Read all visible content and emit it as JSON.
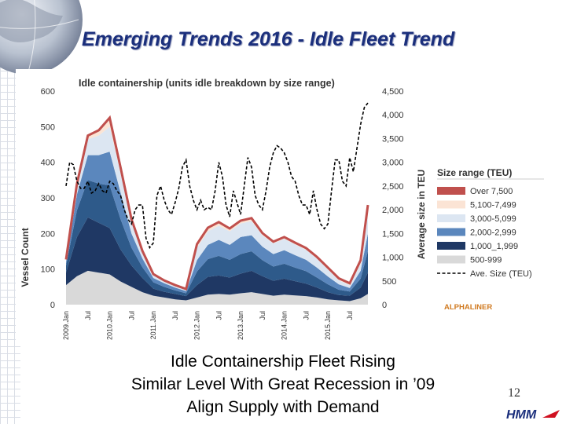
{
  "slide": {
    "title": "Emerging Trends 2016 - Idle Fleet Trend",
    "caption_lines": [
      "Idle Containership Fleet Rising",
      "Similar Level With Great Recession in ’09",
      "Align Supply with Demand"
    ],
    "page_number": "12",
    "logo_text": "HMM",
    "colors": {
      "title": "#1b2f7c"
    }
  },
  "chart_data": {
    "type": "area",
    "title": "Idle containership (units idle breakdown by size range)",
    "ylabel": "Vessel Count",
    "y2label": "Average size in TEU",
    "ylim": [
      0,
      600
    ],
    "y2lim": [
      0,
      4500
    ],
    "yticks": [
      "600",
      "500",
      "400",
      "300",
      "200",
      "100",
      "0"
    ],
    "y2ticks": [
      "4,500",
      "4,000",
      "3,500",
      "3,000",
      "2,500",
      "2,000",
      "1,500",
      "1,000",
      "500",
      "0"
    ],
    "x_ticks": [
      "2009.Jan",
      "Jul",
      "2010.Jan",
      "Jul",
      "2011.Jan",
      "Jul",
      "2012.Jan",
      "Jul",
      "2013.Jan",
      "Jul",
      "2014.Jan",
      "Jul",
      "2015.Jan",
      "Jul"
    ],
    "x_months": [
      0,
      6,
      12,
      18,
      24,
      30,
      36,
      42,
      48,
      54,
      60,
      66,
      72,
      78
    ],
    "x_range": [
      0,
      83
    ],
    "legend_title": "Size range (TEU)",
    "source": "ALPHALINER",
    "x": [
      0,
      3,
      6,
      9,
      12,
      15,
      18,
      21,
      24,
      27,
      30,
      33,
      36,
      39,
      42,
      45,
      48,
      51,
      54,
      57,
      60,
      63,
      66,
      69,
      72,
      75,
      78,
      81,
      83
    ],
    "series": [
      {
        "name": "500-999",
        "color": "#d9d9d9",
        "values": [
          55,
          80,
          95,
          90,
          85,
          65,
          50,
          35,
          25,
          20,
          15,
          12,
          20,
          28,
          30,
          28,
          32,
          35,
          30,
          25,
          28,
          26,
          24,
          20,
          15,
          12,
          10,
          18,
          30
        ]
      },
      {
        "name": "1,000_1,999",
        "color": "#1f3864",
        "values": [
          35,
          110,
          150,
          140,
          130,
          90,
          60,
          40,
          20,
          16,
          15,
          12,
          35,
          50,
          52,
          48,
          55,
          60,
          50,
          42,
          45,
          40,
          35,
          28,
          20,
          15,
          15,
          30,
          60
        ]
      },
      {
        "name": "2,000-2,999",
        "color": "#2e5a8a",
        "values": [
          20,
          75,
          105,
          110,
          120,
          85,
          50,
          30,
          18,
          14,
          10,
          8,
          38,
          50,
          55,
          50,
          55,
          55,
          45,
          40,
          42,
          38,
          35,
          28,
          22,
          15,
          12,
          25,
          60
        ]
      },
      {
        "name": "3,000-5,099",
        "color": "#5b87bd",
        "values": [
          10,
          45,
          70,
          80,
          95,
          75,
          40,
          25,
          12,
          10,
          8,
          6,
          32,
          40,
          45,
          42,
          48,
          45,
          38,
          35,
          38,
          35,
          32,
          28,
          22,
          15,
          10,
          22,
          50
        ]
      },
      {
        "name": "5,100-7,499",
        "color": "#dce6f2",
        "values": [
          5,
          25,
          45,
          55,
          70,
          55,
          30,
          15,
          8,
          6,
          5,
          4,
          35,
          38,
          40,
          38,
          38,
          40,
          32,
          30,
          32,
          30,
          28,
          25,
          20,
          12,
          8,
          20,
          50
        ]
      },
      {
        "name": "Over 7,500",
        "color": "#fbe4d5",
        "values": [
          2,
          5,
          10,
          15,
          25,
          15,
          10,
          6,
          3,
          2,
          2,
          2,
          10,
          10,
          10,
          8,
          8,
          8,
          6,
          5,
          5,
          5,
          5,
          5,
          5,
          5,
          5,
          10,
          30
        ]
      }
    ],
    "legend": [
      {
        "label": "Over 7,500",
        "color": "#c0504d"
      },
      {
        "label": "5,100-7,499",
        "color": "#fbe4d5"
      },
      {
        "label": "3,000-5,099",
        "color": "#dce6f2"
      },
      {
        "label": "2,000-2,999",
        "color": "#5b87bd"
      },
      {
        "label": "1,000_1,999",
        "color": "#1f3864"
      },
      {
        "label": "500-999",
        "color": "#d9d9d9"
      },
      {
        "label": "Ave. Size (TEU)",
        "color": "#000000",
        "dashed": true
      }
    ],
    "total_line_color": "#c0504d",
    "avg_size": {
      "name": "Ave. Size (TEU)",
      "x": [
        0,
        1,
        2,
        3,
        4,
        5,
        6,
        7,
        8,
        9,
        10,
        11,
        12,
        13,
        14,
        15,
        16,
        17,
        18,
        19,
        20,
        21,
        22,
        23,
        24,
        25,
        26,
        27,
        28,
        29,
        30,
        31,
        32,
        33,
        34,
        35,
        36,
        37,
        38,
        39,
        40,
        41,
        42,
        43,
        44,
        45,
        46,
        47,
        48,
        49,
        50,
        51,
        52,
        53,
        54,
        55,
        56,
        57,
        58,
        59,
        60,
        61,
        62,
        63,
        64,
        65,
        66,
        67,
        68,
        69,
        70,
        71,
        72,
        73,
        74,
        75,
        76,
        77,
        78,
        79,
        80,
        81,
        82,
        83
      ],
      "values": [
        2500,
        3000,
        2950,
        2600,
        2450,
        2450,
        2600,
        2350,
        2400,
        2550,
        2400,
        2350,
        2600,
        2550,
        2400,
        2300,
        2000,
        1800,
        1700,
        2000,
        2100,
        2100,
        1400,
        1200,
        1300,
        2300,
        2500,
        2200,
        2000,
        1900,
        2150,
        2450,
        2900,
        3050,
        2500,
        2200,
        2000,
        2200,
        2000,
        2050,
        2000,
        2400,
        3000,
        2700,
        2100,
        1850,
        2400,
        2150,
        1900,
        2500,
        3100,
        2900,
        2300,
        2100,
        2000,
        2400,
        2900,
        3200,
        3350,
        3300,
        3200,
        3000,
        2700,
        2600,
        2300,
        2100,
        2100,
        1900,
        2400,
        2000,
        1700,
        1600,
        1700,
        2400,
        3050,
        3050,
        2600,
        2500,
        3100,
        2800,
        3300,
        3800,
        4150,
        4250
      ]
    }
  }
}
